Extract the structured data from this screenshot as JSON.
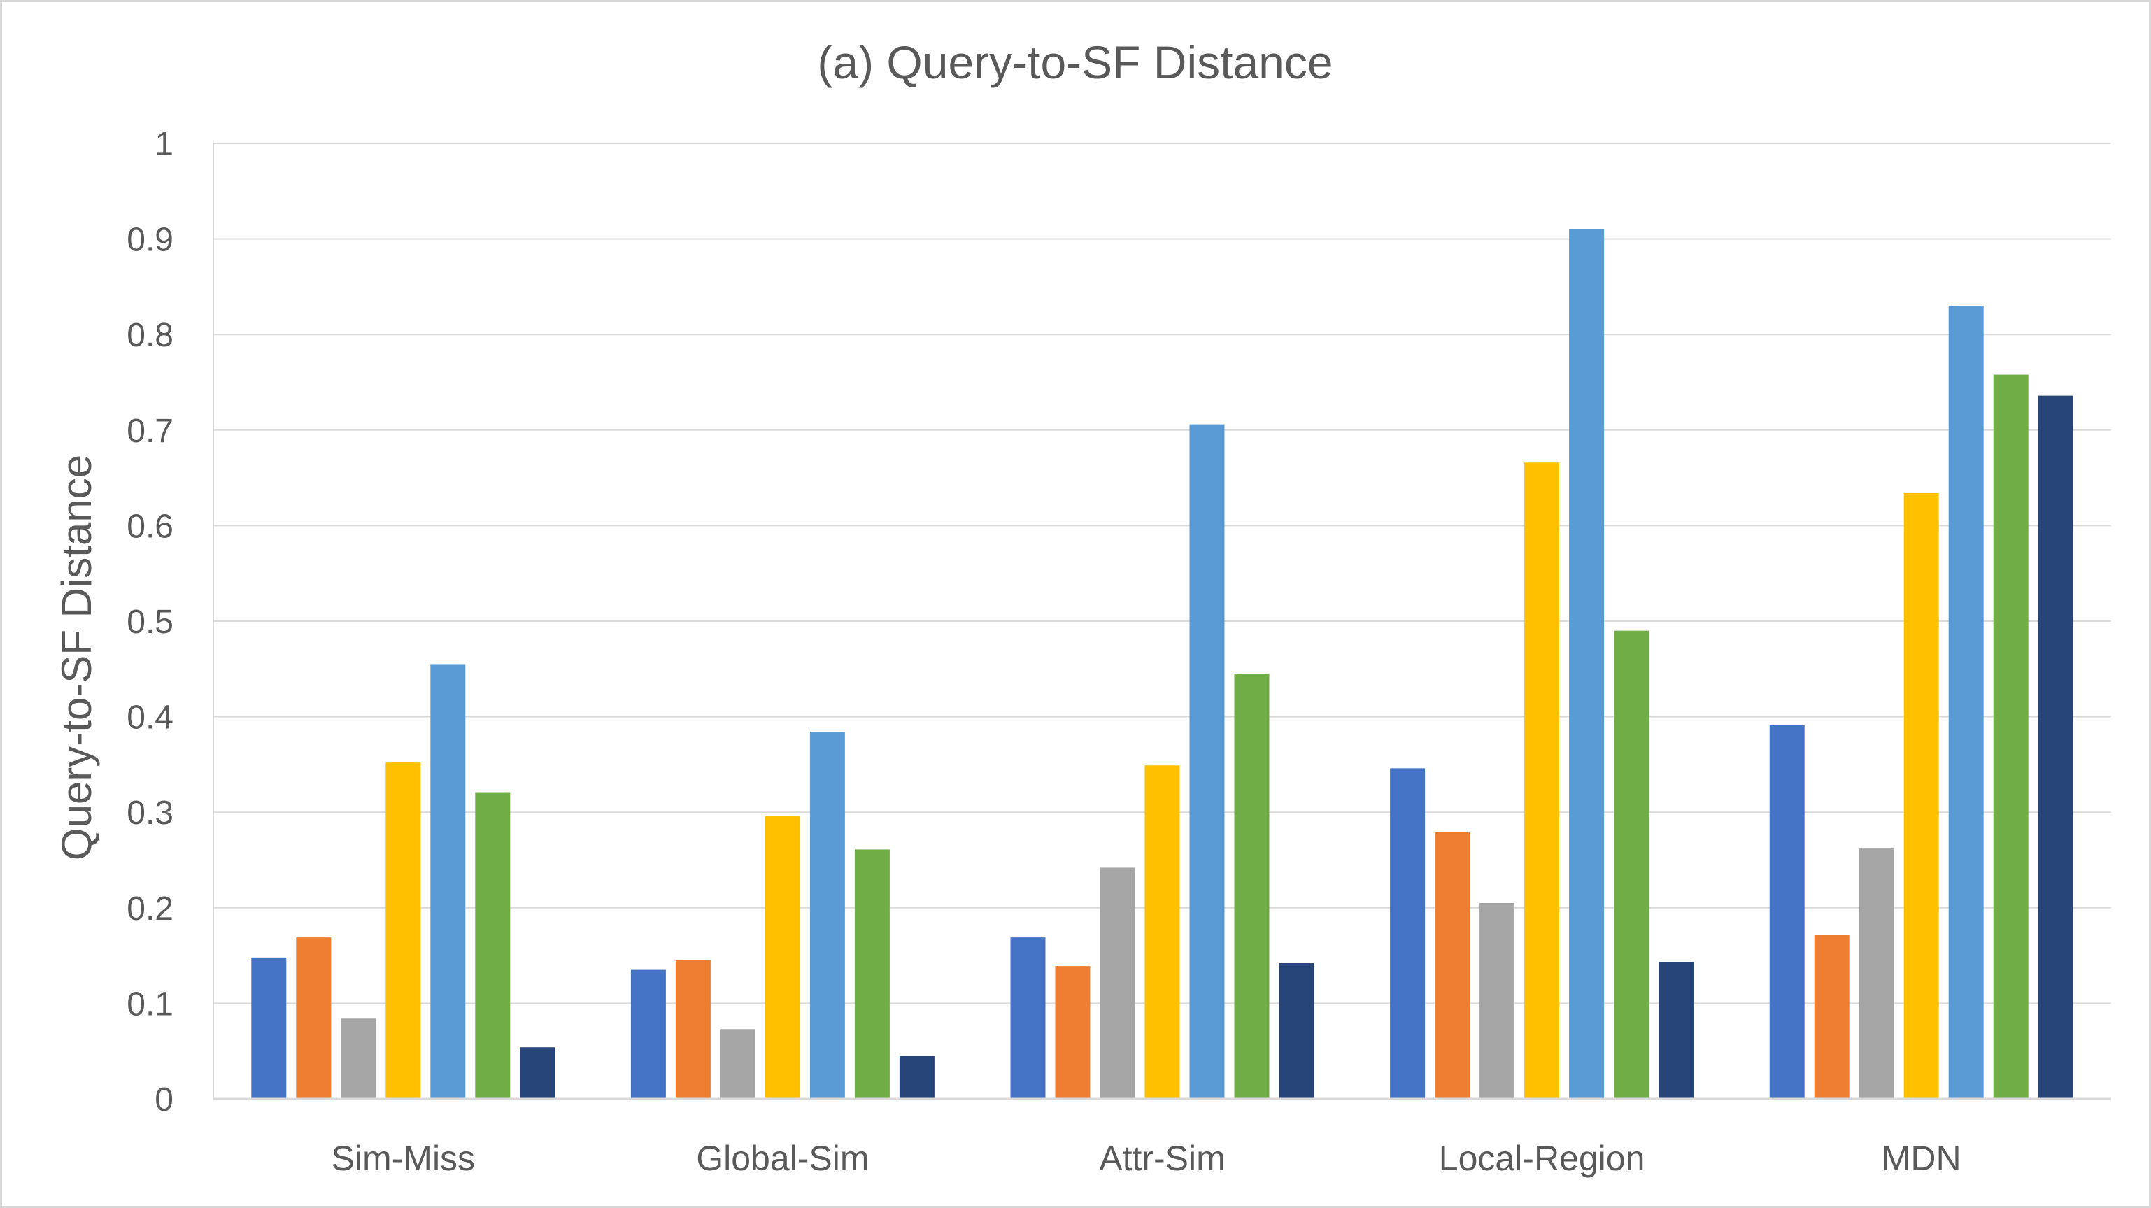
{
  "chart_data": {
    "type": "bar",
    "title": "(a) Query-to-SF Distance",
    "xlabel": "",
    "ylabel": "Query-to-SF Distance",
    "ylim": [
      0,
      1
    ],
    "yticks": [
      "0",
      "0.1",
      "0.2",
      "0.3",
      "0.4",
      "0.5",
      "0.6",
      "0.7",
      "0.8",
      "0.9",
      "1"
    ],
    "categories": [
      "Sim-Miss",
      "Global-Sim",
      "Attr-Sim",
      "Local-Region",
      "MDN"
    ],
    "grid": true,
    "legend": "none",
    "series": [
      {
        "color": "#4472c4",
        "values": [
          0.148,
          0.135,
          0.169,
          0.346,
          0.391
        ]
      },
      {
        "color": "#ed7d31",
        "values": [
          0.169,
          0.145,
          0.139,
          0.279,
          0.172
        ]
      },
      {
        "color": "#a5a5a5",
        "values": [
          0.084,
          0.073,
          0.242,
          0.205,
          0.262
        ]
      },
      {
        "color": "#ffc000",
        "values": [
          0.352,
          0.296,
          0.349,
          0.666,
          0.634
        ]
      },
      {
        "color": "#5b9bd5",
        "values": [
          0.455,
          0.384,
          0.706,
          0.91,
          0.83
        ]
      },
      {
        "color": "#70ad47",
        "values": [
          0.321,
          0.261,
          0.445,
          0.49,
          0.758
        ]
      },
      {
        "color": "#264478",
        "values": [
          0.054,
          0.045,
          0.142,
          0.143,
          0.736
        ]
      }
    ]
  }
}
